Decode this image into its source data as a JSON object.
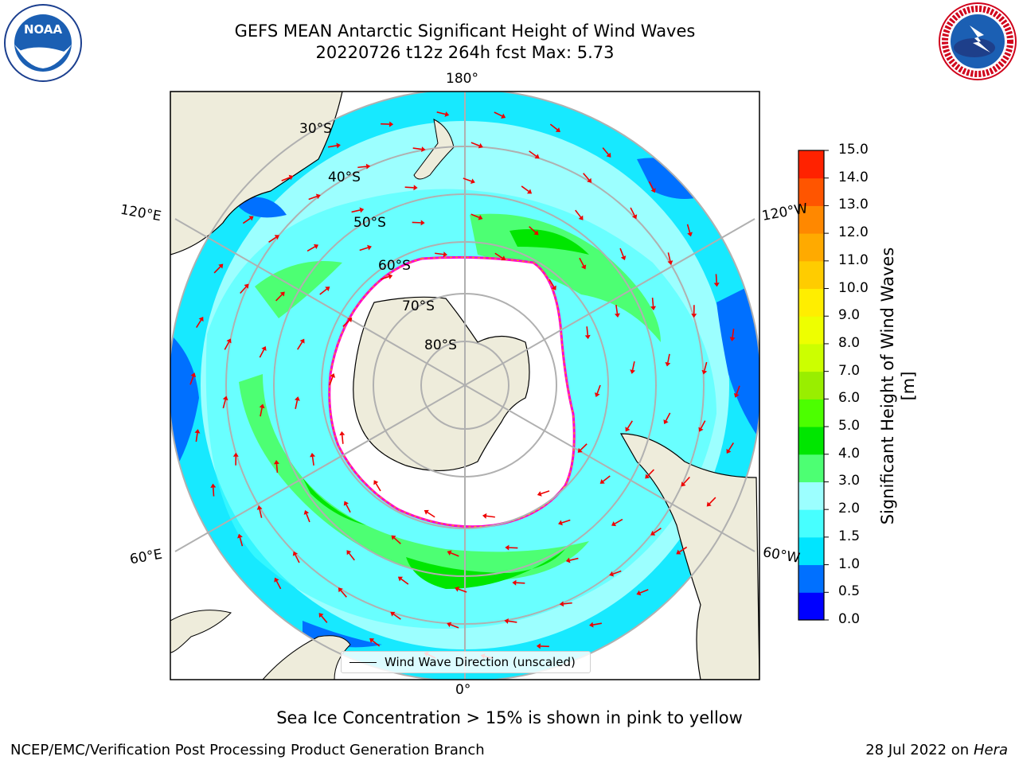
{
  "title": {
    "line1": "GEFS MEAN Antarctic Significant Height of Wind Waves",
    "line2": "20220726 t12z 264h fcst   Max: 5.73"
  },
  "map": {
    "longitude_labels": {
      "lon_180": "180°",
      "lon_0": "0°",
      "lon_120E": "120°E",
      "lon_60E": "60°E",
      "lon_120W": "120°W",
      "lon_60W": "60°W"
    },
    "latitude_labels": [
      "30°S",
      "40°S",
      "50°S",
      "60°S",
      "70°S",
      "80°S"
    ],
    "legend_label": "Wind Wave Direction (unscaled)",
    "land_color": "#eeecdb",
    "ice_shelf_color": "#ffffff",
    "sea_ice_edge_colors": [
      "#ff00cc",
      "#ffa500",
      "#ffdd00"
    ],
    "arrow_color": "#ee0000"
  },
  "colorbar": {
    "label": "Significant Height of Wind Waves [m]",
    "ticks": [
      "0.0",
      "0.5",
      "1.0",
      "1.5",
      "2.0",
      "3.0",
      "4.0",
      "5.0",
      "6.0",
      "7.0",
      "8.0",
      "9.0",
      "10.0",
      "11.0",
      "12.0",
      "13.0",
      "14.0",
      "15.0"
    ],
    "colors": [
      "#0000ff",
      "#0070ff",
      "#00e5ff",
      "#47ffff",
      "#9cffff",
      "#4dff73",
      "#00e600",
      "#4cff00",
      "#99ee00",
      "#ccff00",
      "#eeff00",
      "#ffee00",
      "#ffcc00",
      "#ffaa00",
      "#ff8800",
      "#ff5500",
      "#ff2200"
    ]
  },
  "logos": {
    "noaa": "NOAA",
    "nws": "NATIONAL WEATHER SERVICE"
  },
  "caption": "Sea Ice Concentration > 15% is shown in pink to yellow",
  "footer": {
    "left": "NCEP/EMC/Verification Post Processing Product Generation Branch",
    "right_date": "28 Jul 2022 on ",
    "right_machine": "Hera"
  }
}
